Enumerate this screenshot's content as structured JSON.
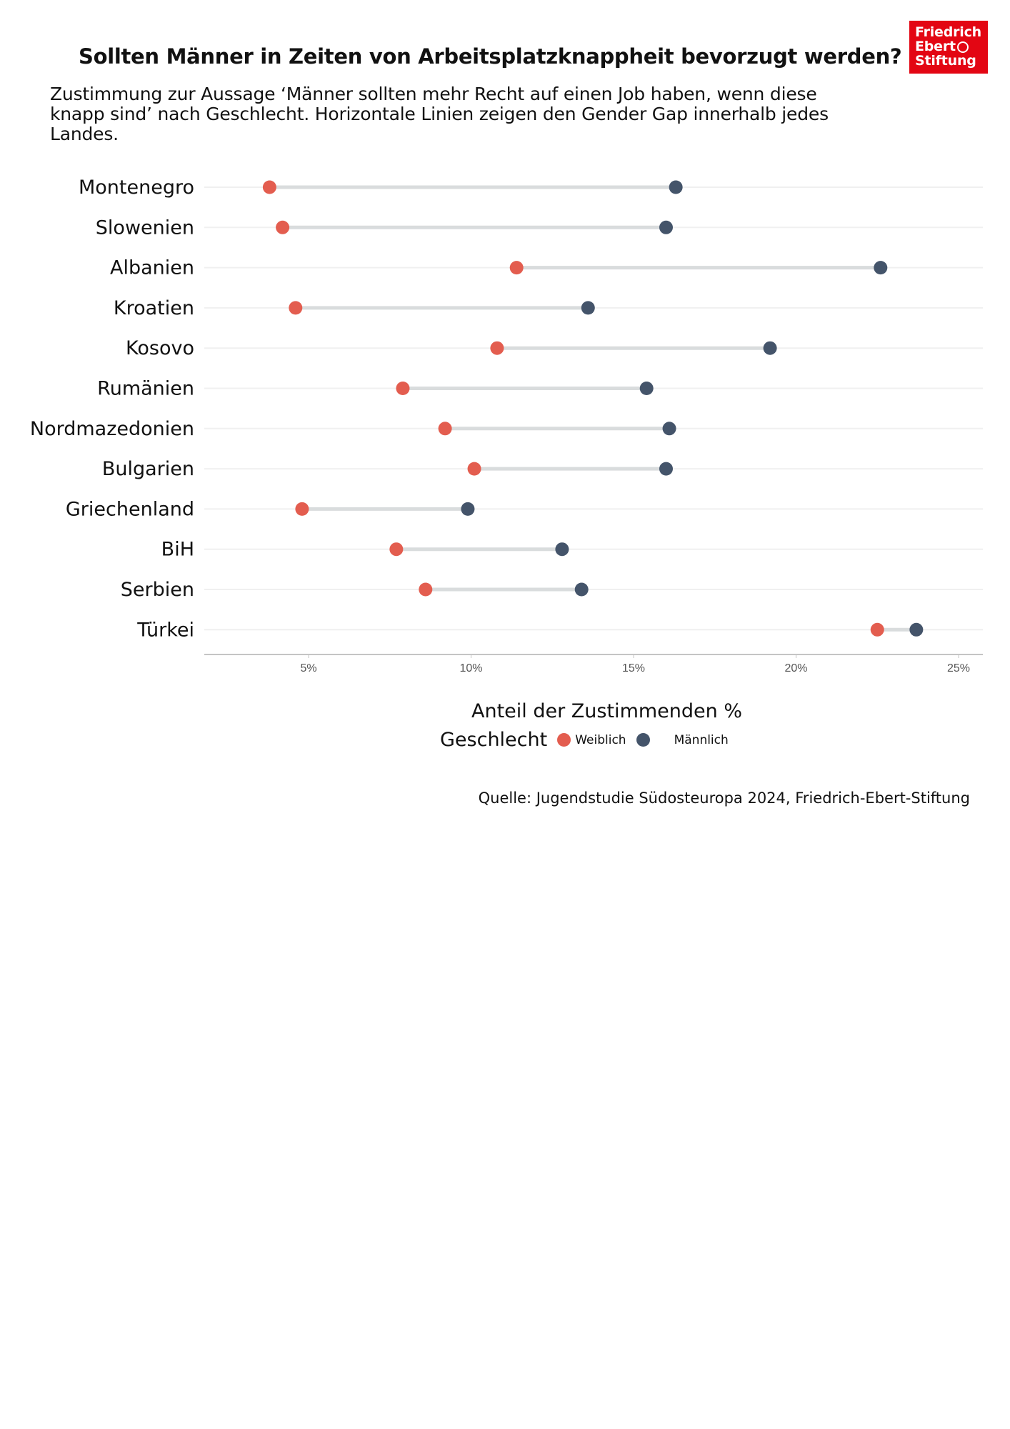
{
  "title": "Sollten Männer in Zeiten von Arbeitsplatzknappheit bevorzugt werden?",
  "subtitle": "Zustimmung zur Aussage ‘Männer sollten mehr Recht auf einen Job haben, wenn diese knapp sind’ nach Geschlecht. Horizontale Linien zeigen den Gender Gap innerhalb jedes Landes.",
  "logo": {
    "line1": "Friedrich",
    "line2": "Ebert",
    "line3": "Stiftung",
    "color": "#e30613"
  },
  "source": "Quelle: Jugendstudie Südosteuropa 2024, Friedrich-Ebert-Stiftung",
  "chart_data": {
    "type": "dumbbell",
    "title": "Sollten Männer in Zeiten von Arbeitsplatzknappheit bevorzugt werden?",
    "xlabel": "Anteil der Zustimmenden %",
    "ylabel": "",
    "xlim": [
      1.8,
      25.7
    ],
    "xticks": [
      5,
      10,
      15,
      20,
      25
    ],
    "xtick_labels": [
      "5%",
      "10%",
      "15%",
      "20%",
      "25%"
    ],
    "grid": "horizontal",
    "legend_title": "Geschlecht",
    "legend_position": "bottom",
    "categories": [
      "Montenegro",
      "Slowenien",
      "Albanien",
      "Kroatien",
      "Kosovo",
      "Rumänien",
      "Nordmazedonien",
      "Bulgarien",
      "Griechenland",
      "BiH",
      "Serbien",
      "Türkei"
    ],
    "series": [
      {
        "name": "Weiblich",
        "color": "#e35d4f",
        "values": [
          3.8,
          4.2,
          11.4,
          4.6,
          10.8,
          7.9,
          9.2,
          10.1,
          4.8,
          7.7,
          8.6,
          22.5
        ]
      },
      {
        "name": "Männlich",
        "color": "#44546a",
        "values": [
          16.3,
          16.0,
          22.6,
          13.6,
          19.2,
          15.4,
          16.1,
          16.0,
          9.9,
          12.8,
          13.4,
          23.7
        ]
      }
    ],
    "gap_line_color": "#d9dcdd",
    "grid_color": "#f0f0f0",
    "axis_color": "#c4c4c4"
  }
}
